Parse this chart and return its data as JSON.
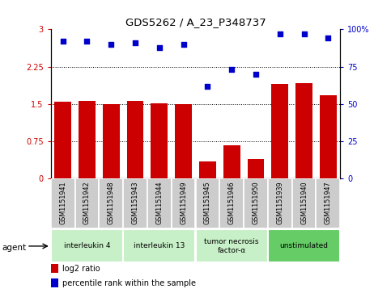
{
  "title": "GDS5262 / A_23_P348737",
  "samples": [
    "GSM1151941",
    "GSM1151942",
    "GSM1151948",
    "GSM1151943",
    "GSM1151944",
    "GSM1151949",
    "GSM1151945",
    "GSM1151946",
    "GSM1151950",
    "GSM1151939",
    "GSM1151940",
    "GSM1151947"
  ],
  "log2_ratio": [
    1.55,
    1.57,
    1.5,
    1.57,
    1.51,
    1.5,
    0.35,
    0.67,
    0.4,
    1.9,
    1.92,
    1.68
  ],
  "percentile_rank": [
    92,
    92,
    90,
    91,
    88,
    90,
    62,
    73,
    70,
    97,
    97,
    94
  ],
  "agents": [
    {
      "label": "interleukin 4",
      "start": 0,
      "end": 3,
      "color": "#c8f0c8"
    },
    {
      "label": "interleukin 13",
      "start": 3,
      "end": 6,
      "color": "#c8f0c8"
    },
    {
      "label": "tumor necrosis\nfactor-α",
      "start": 6,
      "end": 9,
      "color": "#c8f0c8"
    },
    {
      "label": "unstimulated",
      "start": 9,
      "end": 12,
      "color": "#66cc66"
    }
  ],
  "bar_color": "#cc0000",
  "scatter_color": "#0000cc",
  "left_ylim": [
    0,
    3
  ],
  "right_ylim": [
    0,
    100
  ],
  "left_yticks": [
    0,
    0.75,
    1.5,
    2.25,
    3
  ],
  "right_yticks": [
    0,
    25,
    50,
    75,
    100
  ],
  "left_ytick_labels": [
    "0",
    "0.75",
    "1.5",
    "2.25",
    "3"
  ],
  "right_ytick_labels": [
    "0",
    "25",
    "50",
    "75",
    "100%"
  ],
  "gridlines": [
    0.75,
    1.5,
    2.25
  ],
  "background_color": "#ffffff",
  "sample_box_color": "#cccccc",
  "legend_items": [
    {
      "color": "#cc0000",
      "label": "log2 ratio"
    },
    {
      "color": "#0000cc",
      "label": "percentile rank within the sample"
    }
  ],
  "agent_label": "agent",
  "bar_width": 0.7
}
